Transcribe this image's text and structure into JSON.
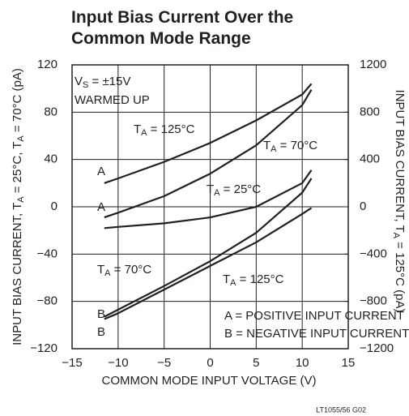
{
  "chart_data": {
    "type": "line",
    "title": [
      "Input Bias Current Over the",
      "Common Mode Range"
    ],
    "xlabel": "COMMON MODE INPUT VOLTAGE (V)",
    "ylabel": [
      "INPUT BIAS CURRENT, T",
      "A",
      " = 25°C, T",
      "A",
      " = 70°C (pA)"
    ],
    "y2label": [
      "INPUT BIAS CURRENT, T",
      "A",
      " = 125°C (pA)"
    ],
    "footnote": "LT1055/56 G02",
    "xlim": [
      -15,
      15
    ],
    "xticks": [
      {
        "value": -15,
        "label": "−15"
      },
      {
        "value": -10,
        "label": "−10"
      },
      {
        "value": -5,
        "label": "−5"
      },
      0,
      5,
      10,
      15
    ],
    "ylim": [
      -120,
      120
    ],
    "yticks": [
      {
        "value": -120,
        "label": "−120"
      },
      {
        "value": -80,
        "label": "−80"
      },
      {
        "value": -40,
        "label": "−40"
      },
      0,
      40,
      80,
      120
    ],
    "y2lim": [
      -1200,
      1200
    ],
    "y2ticks": [
      {
        "value": -1200,
        "label": "−1200"
      },
      {
        "value": -800,
        "label": "−800"
      },
      {
        "value": -400,
        "label": "−400"
      },
      0,
      400,
      800,
      1200
    ],
    "grid": true,
    "color": "#231f20",
    "x": [
      -11.5,
      -10,
      -5,
      0,
      5,
      10,
      11
    ],
    "series": [
      {
        "axis": "y2",
        "values": [
          200,
          240,
          380,
          540,
          730,
          950,
          1040
        ]
      },
      {
        "axis": "y",
        "values": [
          -9,
          -5,
          9,
          28,
          52,
          86,
          99
        ]
      },
      {
        "axis": "y",
        "values": [
          -18,
          -17,
          -14,
          -9,
          0,
          20,
          31
        ]
      },
      {
        "axis": "y",
        "values": [
          -93,
          -87,
          -67,
          -46,
          -22,
          12,
          24
        ]
      },
      {
        "axis": "y2",
        "values": [
          -950,
          -900,
          -700,
          -500,
          -300,
          -60,
          -10
        ]
      }
    ],
    "annotations": [
      [
        "V",
        "S",
        " = ±15V"
      ],
      [
        "WARMED UP"
      ],
      [
        "T",
        "A",
        " = 125°C"
      ],
      [
        "T",
        "A",
        " = 70°C"
      ],
      [
        "T",
        "A",
        " = 25°C"
      ],
      [
        "T",
        "A",
        " = 70°C"
      ],
      [
        "T",
        "A",
        " = 125°C"
      ],
      [
        "A"
      ],
      [
        "A"
      ],
      [
        "B"
      ],
      [
        "B"
      ],
      [
        "A = POSITIVE INPUT CURRENT"
      ],
      [
        "B = NEGATIVE INPUT CURRENT"
      ]
    ]
  }
}
